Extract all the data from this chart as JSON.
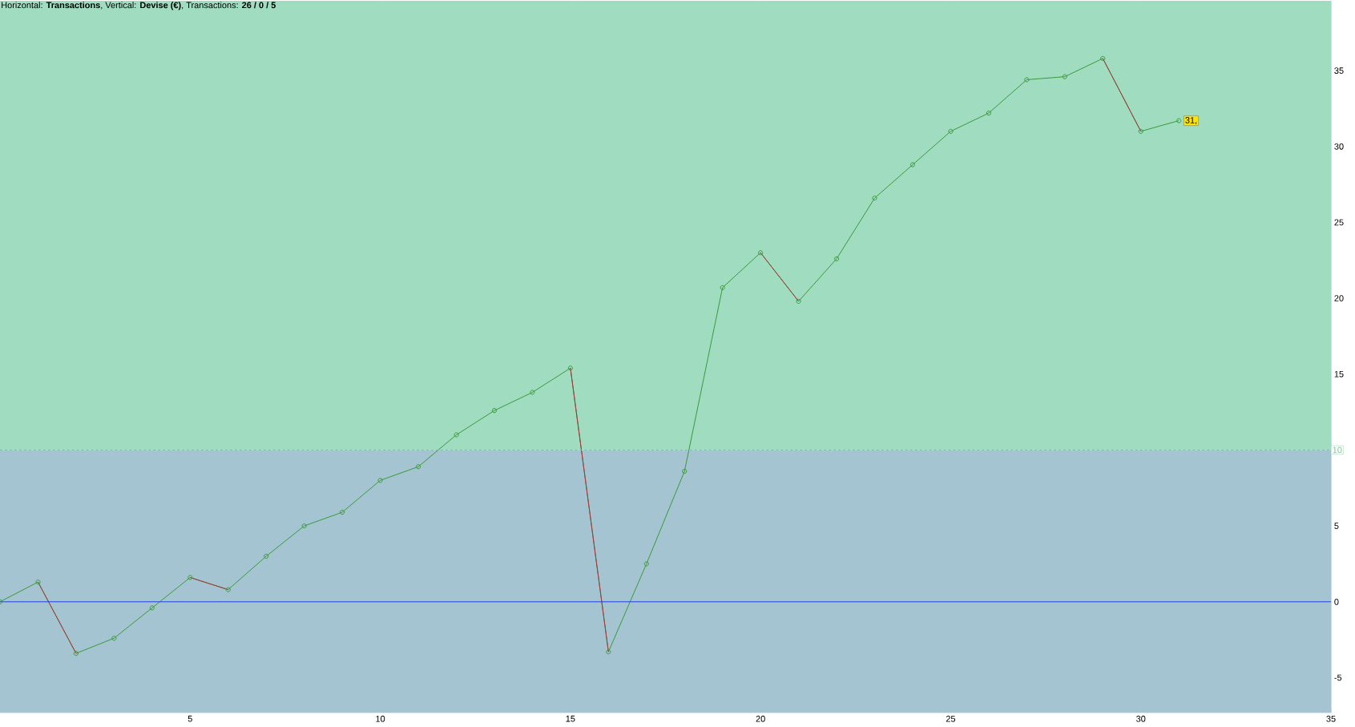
{
  "chart_data": {
    "type": "line",
    "title": "Horizontal: **Transactions**, Vertical: **Devise (€)**, Transactions: **26 / 0 / 5**",
    "x": [
      0,
      1,
      2,
      3,
      4,
      5,
      6,
      7,
      8,
      9,
      10,
      11,
      12,
      13,
      14,
      15,
      16,
      17,
      18,
      19,
      20,
      21,
      22,
      23,
      24,
      25,
      26,
      27,
      28,
      29,
      30,
      31
    ],
    "series": [
      {
        "color": "#3a9a3a",
        "values": [
          0,
          1.3,
          -3.4,
          -2.4,
          -0.4,
          1.6,
          0.8,
          3.0,
          5.0,
          5.9,
          8.0,
          8.9,
          11.0,
          12.6,
          13.8,
          15.4,
          -3.3,
          2.5,
          8.6,
          20.7,
          23.0,
          19.8,
          22.6,
          26.6,
          28.8,
          31.0,
          32.2,
          34.4,
          34.6,
          35.8,
          31.0,
          31.7
        ]
      },
      {
        "color": "#b03040",
        "marker": "none",
        "x": [
          1,
          2,
          3,
          5,
          6,
          7,
          15,
          16,
          17,
          20,
          21,
          22,
          29,
          30
        ],
        "values": [
          1.3,
          -3.4,
          null,
          1.6,
          0.8,
          null,
          15.4,
          -3.3,
          null,
          23.0,
          19.8,
          null,
          35.8,
          31.0
        ]
      }
    ],
    "xlim": [
      0,
      35
    ],
    "ylim": [
      -7.3,
      39.6
    ],
    "xticks": [
      5,
      10,
      15,
      20,
      25,
      30,
      35
    ],
    "yticks": [
      -5,
      0,
      5,
      15,
      20,
      25,
      30,
      35
    ],
    "grid": true,
    "marker": "circle",
    "bands": [
      {
        "axis": "y",
        "from": 10,
        "to": 39.6,
        "color": "#9fdcc0"
      },
      {
        "axis": "y",
        "from": -7.3,
        "to": 10,
        "color": "#a3c4d0"
      }
    ],
    "ref_lines": [
      {
        "axis": "y",
        "value": 0,
        "color": "#2040e0"
      },
      {
        "axis": "y",
        "value": 10,
        "label": "10",
        "color": "#7cc494",
        "line_style": "dashed"
      }
    ],
    "annotations": [
      {
        "text": "31,",
        "x": 31,
        "y": 31.7
      }
    ]
  }
}
